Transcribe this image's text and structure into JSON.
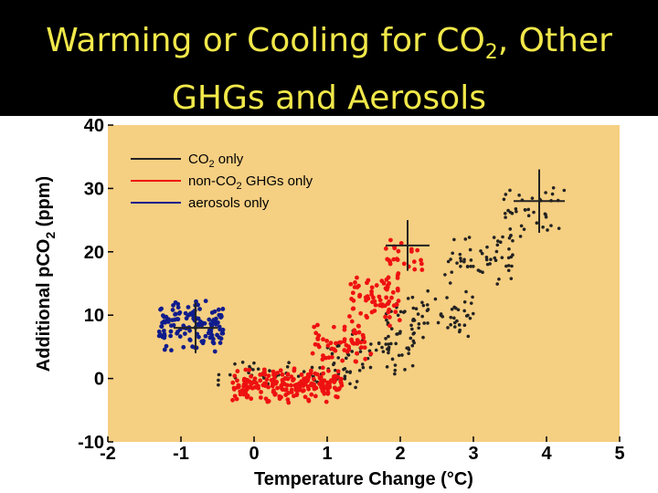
{
  "title": {
    "main": "Warming or Cooling for CO",
    "sub": "2",
    "rest": ", Other",
    "line2": "GHGs and Aerosols"
  },
  "chart_data": {
    "type": "scatter",
    "title": "Warming or Cooling for CO2, Other GHGs and Aerosols",
    "xlabel": "Temperature Change (°C)",
    "ylabel_main": "Additional pCO",
    "ylabel_sub": "2",
    "ylabel_rest": " (ppm)",
    "xlim": [
      -2,
      5
    ],
    "ylim": [
      -10,
      40
    ],
    "xticks": [
      "-2",
      "-1",
      "0",
      "1",
      "2",
      "3",
      "4",
      "5"
    ],
    "yticks": [
      "-10",
      "0",
      "10",
      "20",
      "30",
      "40"
    ],
    "legend_position": "top-left",
    "colors": {
      "background": "#f5cf82",
      "co2": "#222222",
      "nonco2": "#ee1111",
      "aerosols": "#101c8c"
    },
    "series": [
      {
        "key": "co2",
        "name": "CO2 only",
        "legend_main": "CO",
        "legend_sub": "2",
        "legend_rest": " only",
        "clusters": [
          {
            "x": [
              -0.5,
              1.5
            ],
            "y": [
              -3,
              4
            ],
            "n": 60
          },
          {
            "x": [
              1.0,
              2.2
            ],
            "y": [
              0,
              9
            ],
            "n": 70
          },
          {
            "x": [
              1.8,
              3.0
            ],
            "y": [
              6,
              14
            ],
            "n": 70
          },
          {
            "x": [
              2.6,
              3.6
            ],
            "y": [
              14,
              24
            ],
            "n": 55
          },
          {
            "x": [
              3.4,
              4.3
            ],
            "y": [
              22,
              31
            ],
            "n": 40
          }
        ],
        "crosshair": {
          "x": 3.9,
          "y": 28,
          "dx": 0.35,
          "dy": 5
        }
      },
      {
        "key": "nonco2",
        "name": "non-CO2 GHGs only",
        "legend_main": "non-CO",
        "legend_sub": "2",
        "legend_rest": " GHGs only",
        "clusters": [
          {
            "x": [
              -0.3,
              1.2
            ],
            "y": [
              -4,
              2
            ],
            "n": 220
          },
          {
            "x": [
              0.8,
              1.6
            ],
            "y": [
              2,
              9
            ],
            "n": 60
          },
          {
            "x": [
              1.3,
              2.0
            ],
            "y": [
              8,
              17
            ],
            "n": 70
          },
          {
            "x": [
              1.8,
              2.3
            ],
            "y": [
              15,
              22
            ],
            "n": 25
          }
        ],
        "crosshair": {
          "x": 2.1,
          "y": 21,
          "dx": 0.3,
          "dy": 4
        }
      },
      {
        "key": "aerosols",
        "name": "aerosols only",
        "legend_main": "aerosols only",
        "legend_sub": "",
        "legend_rest": "",
        "clusters": [
          {
            "x": [
              -1.3,
              -0.4
            ],
            "y": [
              4,
              13
            ],
            "n": 130
          }
        ],
        "crosshair": {
          "x": -0.8,
          "y": 8,
          "dx": 0.3,
          "dy": 4
        }
      }
    ]
  }
}
